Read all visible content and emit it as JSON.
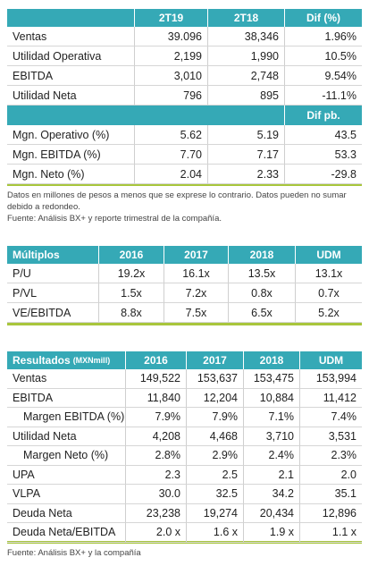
{
  "table1": {
    "columns": [
      "2T19",
      "2T18",
      "Dif (%)"
    ],
    "rows": [
      [
        "Ventas",
        "39.096",
        "38,346",
        "1.96%"
      ],
      [
        "Utilidad Operativa",
        "2,199",
        "1,990",
        "10.5%"
      ],
      [
        "EBITDA",
        "3,010",
        "2,748",
        "9.54%"
      ],
      [
        "Utilidad Neta",
        "796",
        "895",
        "-11.1%"
      ]
    ],
    "subheader": "Dif pb.",
    "rows2": [
      [
        "Mgn. Operativo (%)",
        "5.62",
        "5.19",
        "43.5"
      ],
      [
        "Mgn. EBITDA (%)",
        "7.70",
        "7.17",
        "53.3"
      ],
      [
        "Mgn. Neto (%)",
        "2.04",
        "2.33",
        "-29.8"
      ]
    ],
    "notes": [
      "Datos en millones de pesos a menos que se exprese lo contrario. Datos pueden no sumar debido a redondeo.",
      "Fuente: Análisis BX+ y reporte trimestral de la compañía."
    ]
  },
  "table2": {
    "columns": [
      "Múltiplos",
      "2016",
      "2017",
      "2018",
      "UDM"
    ],
    "rows": [
      [
        "P/U",
        "19.2x",
        "16.1x",
        "13.5x",
        "13.1x"
      ],
      [
        "P/VL",
        "1.5x",
        "7.2x",
        "0.8x",
        "0.7x"
      ],
      [
        "VE/EBITDA",
        "8.8x",
        "7.5x",
        "6.5x",
        "5.2x"
      ]
    ]
  },
  "table3": {
    "title": "Resultados",
    "unit": "(MXNmill)",
    "columns": [
      "2016",
      "2017",
      "2018",
      "UDM"
    ],
    "rows": [
      [
        "Ventas",
        "149,522",
        "153,637",
        "153,475",
        "153,994"
      ],
      [
        "EBITDA",
        "11,840",
        "12,204",
        "10,884",
        "11,412"
      ],
      [
        "Margen EBITDA (%)",
        "7.9%",
        "7.9%",
        "7.1%",
        "7.4%"
      ],
      [
        "Utilidad Neta",
        "4,208",
        "4,468",
        "3,710",
        "3,531"
      ],
      [
        "Margen Neto (%)",
        "2.8%",
        "2.9%",
        "2.4%",
        "2.3%"
      ],
      [
        "UPA",
        "2.3",
        "2.5",
        "2.1",
        "2.0"
      ],
      [
        "VLPA",
        "30.0",
        "32.5",
        "34.2",
        "35.1"
      ],
      [
        "Deuda Neta",
        "23,238",
        "19,274",
        "20,434",
        "12,896"
      ],
      [
        "Deuda Neta/EBITDA",
        "2.0 x",
        "1.6 x",
        "1.9 x",
        "1.1 x"
      ]
    ],
    "indented_rows": [
      2,
      4
    ],
    "source": "Fuente: Análisis BX+ y la compañía"
  }
}
